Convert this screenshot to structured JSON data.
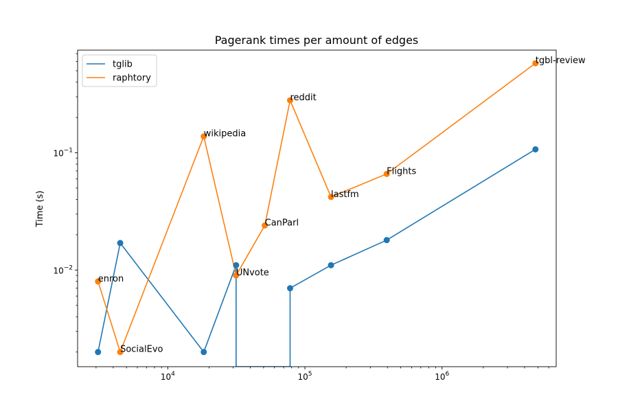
{
  "chart_data": {
    "type": "line",
    "title": "Pagerank times per amount of edges",
    "xlabel": "",
    "ylabel": "Time (s)",
    "xscale": "log",
    "yscale": "log",
    "xlim": [
      2200,
      6800000
    ],
    "ylim": [
      0.0015,
      0.75
    ],
    "xticks": [
      {
        "value": 10000,
        "base": "10",
        "exp": "4"
      },
      {
        "value": 100000,
        "base": "10",
        "exp": "5"
      },
      {
        "value": 1000000,
        "base": "10",
        "exp": "6"
      }
    ],
    "yticks": [
      {
        "value": 0.01,
        "base": "10",
        "exp": "−2"
      },
      {
        "value": 0.1,
        "base": "10",
        "exp": "−1"
      }
    ],
    "grid": false,
    "legend": "top-left",
    "series": [
      {
        "name": "tglib",
        "color": "#1f77b4",
        "points": [
          {
            "x": 3100,
            "y": 0.002
          },
          {
            "x": 4500,
            "y": 0.017
          },
          {
            "x": 18300,
            "y": 0.002
          },
          {
            "x": 31500,
            "y": 0.011
          },
          {
            "x": 31500,
            "y": 0.0015,
            "marker": false,
            "break": true
          },
          {
            "x": 78000,
            "y": 0.0015,
            "marker": false
          },
          {
            "x": 78000,
            "y": 0.007
          },
          {
            "x": 155000,
            "y": 0.011
          },
          {
            "x": 395000,
            "y": 0.018
          },
          {
            "x": 4800000,
            "y": 0.107
          }
        ]
      },
      {
        "name": "raphtory",
        "color": "#ff7f0e",
        "points": [
          {
            "x": 3100,
            "y": 0.008
          },
          {
            "x": 4500,
            "y": 0.002
          },
          {
            "x": 18300,
            "y": 0.138
          },
          {
            "x": 31500,
            "y": 0.009
          },
          {
            "x": 51000,
            "y": 0.024
          },
          {
            "x": 78000,
            "y": 0.28
          },
          {
            "x": 155000,
            "y": 0.042
          },
          {
            "x": 395000,
            "y": 0.066
          },
          {
            "x": 4800000,
            "y": 0.58
          }
        ]
      }
    ],
    "annotations": [
      {
        "text": "enron",
        "x": 3100,
        "y": 0.008
      },
      {
        "text": "SocialEvo",
        "x": 4500,
        "y": 0.002
      },
      {
        "text": "wikipedia",
        "x": 18300,
        "y": 0.138
      },
      {
        "text": "UNvote",
        "x": 31500,
        "y": 0.009
      },
      {
        "text": "CanParl",
        "x": 51000,
        "y": 0.024
      },
      {
        "text": "reddit",
        "x": 78000,
        "y": 0.28
      },
      {
        "text": "lastfm",
        "x": 155000,
        "y": 0.042
      },
      {
        "text": "Flights",
        "x": 395000,
        "y": 0.066
      },
      {
        "text": "tgbl-review",
        "x": 4800000,
        "y": 0.58
      }
    ]
  }
}
